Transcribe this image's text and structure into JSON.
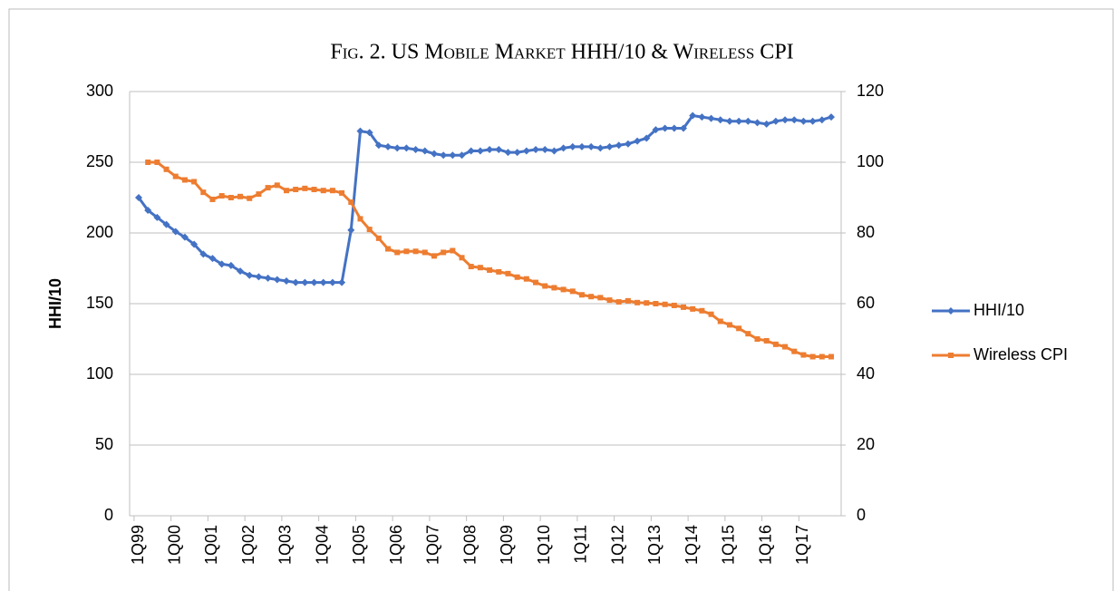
{
  "chart_data": {
    "type": "line",
    "title": "Fig. 2. US Mobile Market HHH/10 & Wireless CPI",
    "y_label": "HHI/10",
    "categories": [
      "1Q99",
      null,
      null,
      null,
      "1Q00",
      null,
      null,
      null,
      "1Q01",
      null,
      null,
      null,
      "1Q02",
      null,
      null,
      null,
      "1Q03",
      null,
      null,
      null,
      "1Q04",
      null,
      null,
      null,
      "1Q05",
      null,
      null,
      null,
      "1Q06",
      null,
      null,
      null,
      "1Q07",
      null,
      null,
      null,
      "1Q08",
      null,
      null,
      null,
      "1Q09",
      null,
      null,
      null,
      "1Q10",
      null,
      null,
      null,
      "1Q11",
      null,
      null,
      null,
      "1Q12",
      null,
      null,
      null,
      "1Q13",
      null,
      null,
      null,
      "1Q14",
      null,
      null,
      null,
      "1Q15",
      null,
      null,
      null,
      "1Q16",
      null,
      null,
      null,
      "1Q17",
      null,
      null,
      null
    ],
    "series": [
      {
        "name": "HHI/10",
        "color": "#4472c4",
        "axis": "y",
        "marker": "diamond",
        "values": [
          225,
          216,
          211,
          206,
          201,
          197,
          192,
          185,
          182,
          178,
          177,
          173,
          170,
          169,
          168,
          167,
          166,
          165,
          165,
          165,
          165,
          165,
          165,
          202,
          272,
          271,
          262,
          261,
          260,
          260,
          259,
          258,
          256,
          255,
          255,
          255,
          258,
          258,
          259,
          259,
          257,
          257,
          258,
          259,
          259,
          258,
          260,
          261,
          261,
          261,
          260,
          261,
          262,
          263,
          265,
          267,
          273,
          274,
          274,
          274,
          283,
          282,
          281,
          280,
          279,
          279,
          279,
          278,
          277,
          279,
          280,
          280,
          279,
          279,
          280,
          282
        ]
      },
      {
        "name": "Wireless CPI",
        "color": "#ed7d31",
        "axis": "y2",
        "marker": "square",
        "values": [
          null,
          100,
          100,
          98,
          96,
          95,
          94.5,
          91.5,
          89.5,
          90.5,
          90,
          90.3,
          89.8,
          91,
          92.8,
          93.5,
          92,
          92.3,
          92.6,
          92.3,
          92,
          92,
          91.3,
          88.7,
          84,
          81,
          78.5,
          75.5,
          74.5,
          74.8,
          74.8,
          74.5,
          73.5,
          74.5,
          75,
          73,
          70.5,
          70.2,
          69.5,
          69,
          68.5,
          67.5,
          67,
          66,
          65,
          64.5,
          64,
          63.5,
          62.5,
          62,
          61.7,
          61,
          60.5,
          60.8,
          60.3,
          60.2,
          60,
          59.8,
          59.5,
          59,
          58.5,
          58,
          57,
          55,
          54,
          53,
          51.5,
          50,
          49.5,
          48.5,
          47.8,
          46.5,
          45.5,
          45,
          45,
          45
        ]
      }
    ],
    "ylim": [
      0,
      300
    ],
    "yticks": [
      0,
      50,
      100,
      150,
      200,
      250,
      300
    ],
    "y2lim": [
      0,
      120
    ],
    "y2ticks": [
      0,
      20,
      40,
      60,
      80,
      100,
      120
    ],
    "grid": true,
    "legend": "right"
  }
}
